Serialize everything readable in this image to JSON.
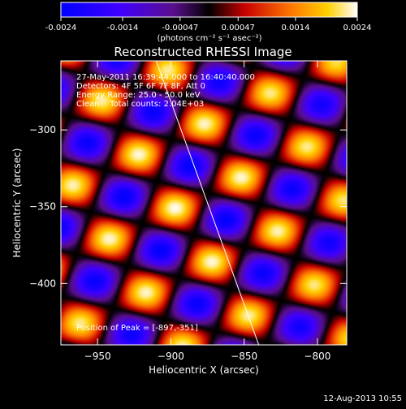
{
  "colorbar": {
    "tick_labels": [
      "-0.0024",
      "-0.0014",
      "-0.00047",
      "0.00047",
      "0.0014",
      "0.0024"
    ],
    "unit_label": "(photons cm⁻² s⁻¹ asec⁻²)",
    "range": [
      -0.0024,
      0.0024
    ],
    "colormap_stops": [
      {
        "pos": 0.0,
        "color": "#0000ff"
      },
      {
        "pos": 0.2,
        "color": "#4000ff"
      },
      {
        "pos": 0.38,
        "color": "#5a0f8a"
      },
      {
        "pos": 0.5,
        "color": "#000000"
      },
      {
        "pos": 0.62,
        "color": "#c80000"
      },
      {
        "pos": 0.78,
        "color": "#ff7a00"
      },
      {
        "pos": 0.9,
        "color": "#ffd000"
      },
      {
        "pos": 1.0,
        "color": "#ffffff"
      }
    ]
  },
  "chart_data": {
    "type": "heatmap",
    "title": "Reconstructed RHESSI Image",
    "xlabel": "Heliocentric X (arcsec)",
    "ylabel": "Heliocentric Y (arcsec)",
    "xlim": [
      -975,
      -780
    ],
    "ylim": [
      -440,
      -255
    ],
    "x_ticks": [
      -950,
      -900,
      -850,
      -800
    ],
    "y_ticks": [
      -300,
      -350,
      -400
    ],
    "annotations": [
      "27-May-2011 16:39:44.000 to 16:40:40.000",
      "Detectors: 4F 5F 6F 7F 8F, Att 0",
      "Energy Range: 25.0 - 50.0 keV",
      "Clean    Total counts: 2.04E+03"
    ],
    "peak_label": "Position of Peak = [-897,-351]",
    "peak": [
      -897,
      -351
    ],
    "limb_line": [
      [
        -910,
        -255
      ],
      [
        -840,
        -440
      ]
    ],
    "pattern": {
      "lattice_u": [
        25,
        -35
      ],
      "lattice_v": [
        45,
        20
      ],
      "bright_offset": [
        0,
        0
      ]
    }
  },
  "footer": {
    "date": "12-Aug-2013 10:55"
  }
}
